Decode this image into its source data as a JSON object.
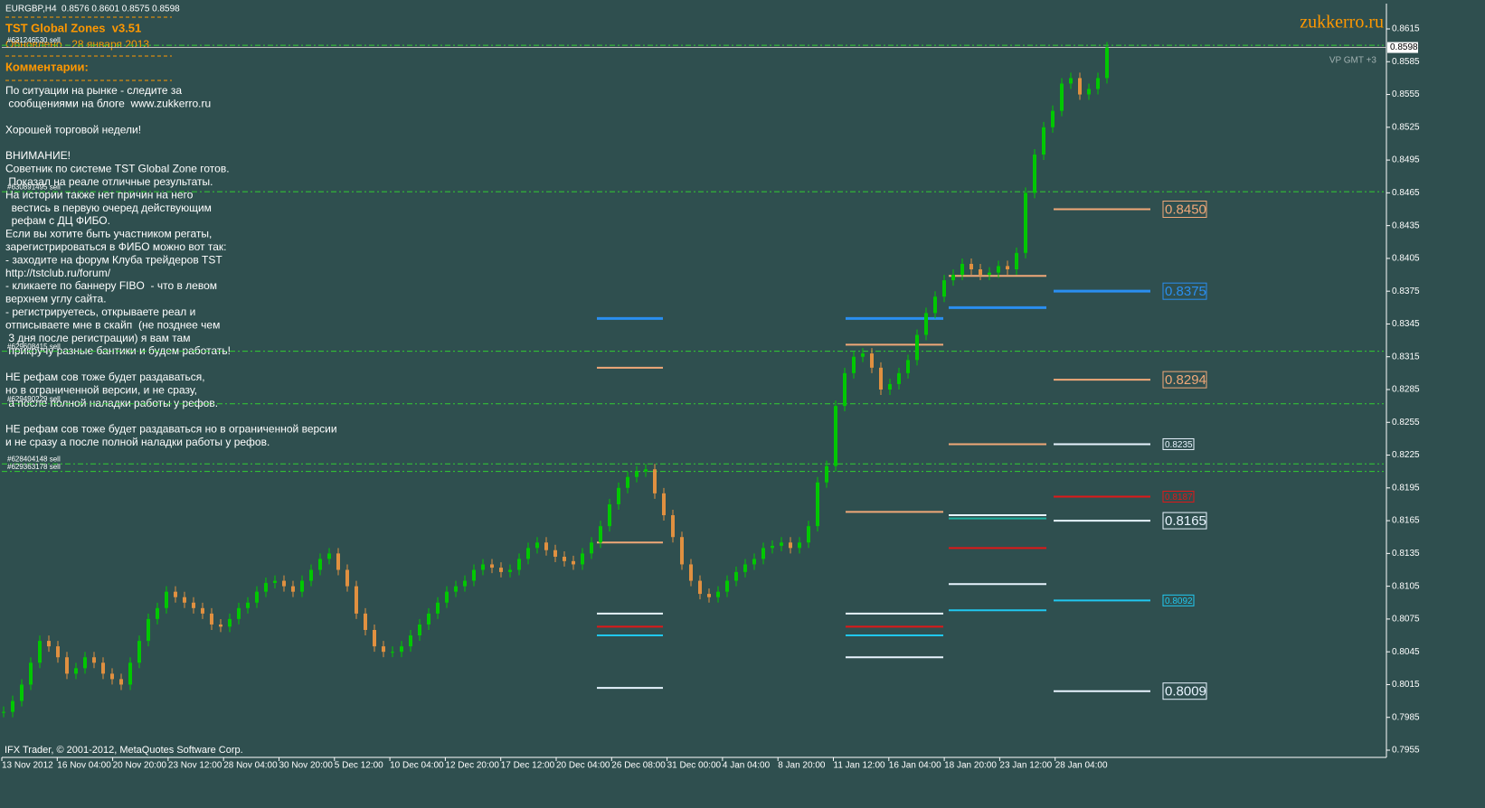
{
  "window": {
    "header": "EURGBP,H4  0.8576 0.8601 0.8575 0.8598",
    "indicator_title": "TST Global Zones  v3.51",
    "updated": "Обновлено - 28 января 2013",
    "comments_title": "Комментарии:",
    "comments": [
      [
        "По ситуации на рынке - следите за",
        " сообщениями на блоге  www.zukkerro.ru"
      ],
      [
        "Хорошей торговой недели!"
      ],
      [
        "ВНИМАНИЕ!",
        "Советник по системе TST Global Zone готов.",
        " Показал на реале отличные результаты.",
        "На истории также нет причин на него",
        "  вестись в первую очеред действующим",
        "  рефам с ДЦ ФИБО.",
        "Если вы хотите быть участником регаты,",
        "зарегистрироваться в ФИБО можно вот так:",
        "- заходите на форум Клуба трейдеров TST",
        "http://tstclub.ru/forum/",
        "- кликаете по баннеру FIBO  - что в левом",
        "верхнем углу сайта.",
        "- регистрируетесь, открываете реал и",
        "отписываете мне в скайп  (не позднее чем",
        " 3 дня после регистрации) я вам там",
        " прикручу разные бантики и будем работать!"
      ],
      [
        "НЕ рефам сов тоже будет раздаваться,",
        "но в ограниченной версии, и не сразу,",
        " а после полной наладки работы у рефов."
      ],
      [
        "НЕ рефам сов тоже будет раздаваться но в ограниченной версии",
        "и не сразу а после полной наладки работы у рефов."
      ]
    ],
    "watermark": "zukkerro.ru",
    "timezone": "VP GMT +3",
    "copyright": "IFX Trader, © 2001-2012, MetaQuotes Software Corp."
  },
  "chart_data": {
    "type": "candlestick",
    "up_color": "#00c800",
    "down_color": "#e09040",
    "values": [
      0.799,
      0.8,
      0.8015,
      0.8035,
      0.8055,
      0.805,
      0.804,
      0.8025,
      0.803,
      0.804,
      0.8035,
      0.8025,
      0.802,
      0.8015,
      0.8035,
      0.8055,
      0.8075,
      0.8085,
      0.81,
      0.8095,
      0.809,
      0.8085,
      0.808,
      0.807,
      0.8068,
      0.8075,
      0.8085,
      0.809,
      0.81,
      0.8108,
      0.811,
      0.8105,
      0.81,
      0.811,
      0.812,
      0.813,
      0.8135,
      0.812,
      0.8105,
      0.808,
      0.8065,
      0.805,
      0.8045,
      0.8045,
      0.805,
      0.806,
      0.807,
      0.808,
      0.809,
      0.81,
      0.8105,
      0.811,
      0.812,
      0.8125,
      0.8122,
      0.8118,
      0.812,
      0.813,
      0.814,
      0.8145,
      0.8138,
      0.8132,
      0.8128,
      0.8125,
      0.8135,
      0.8145,
      0.816,
      0.818,
      0.8195,
      0.8205,
      0.821,
      0.8212,
      0.819,
      0.817,
      0.815,
      0.8125,
      0.811,
      0.8098,
      0.8095,
      0.81,
      0.811,
      0.8118,
      0.8125,
      0.813,
      0.814,
      0.8142,
      0.8145,
      0.814,
      0.8145,
      0.816,
      0.82,
      0.8215,
      0.827,
      0.83,
      0.8315,
      0.8318,
      0.8305,
      0.8285,
      0.829,
      0.83,
      0.8312,
      0.8335,
      0.8355,
      0.837,
      0.8385,
      0.839,
      0.84,
      0.8395,
      0.839,
      0.8392,
      0.8398,
      0.8395,
      0.841,
      0.8465,
      0.85,
      0.8525,
      0.854,
      0.8565,
      0.857,
      0.8555,
      0.856,
      0.857,
      0.8598
    ],
    "x_labels": [
      "13 Nov 2012",
      "16 Nov 04:00",
      "20 Nov 20:00",
      "23 Nov 12:00",
      "28 Nov 04:00",
      "30 Nov 20:00",
      "5 Dec 12:00",
      "10 Dec 04:00",
      "12 Dec 20:00",
      "17 Dec 12:00",
      "20 Dec 04:00",
      "26 Dec 08:00",
      "31 Dec 00:00",
      "4 Jan 04:00",
      "8 Jan 20:00",
      "11 Jan 12:00",
      "16 Jan 04:00",
      "18 Jan 20:00",
      "23 Jan 12:00",
      "28 Jan 04:00"
    ],
    "ylim": [
      0.7955,
      0.8615
    ],
    "yticks": [
      0.8615,
      0.8585,
      0.8555,
      0.8525,
      0.8495,
      0.8465,
      0.8435,
      0.8405,
      0.8375,
      0.8345,
      0.8315,
      0.8285,
      0.8255,
      0.8225,
      0.8195,
      0.8165,
      0.8135,
      0.8105,
      0.8075,
      0.8045,
      0.8015,
      0.7985,
      0.7955
    ],
    "current_price": {
      "value": 0.8598,
      "label": "0.8598"
    },
    "orders": [
      {
        "value": 0.86,
        "label": "#631246530 sell"
      },
      {
        "value": 0.8466,
        "label": "#630891495 sell"
      },
      {
        "value": 0.832,
        "label": "#629608415 sell"
      },
      {
        "value": 0.8272,
        "label": "#629490229 sell"
      },
      {
        "value": 0.8217,
        "label": "#628404148 sell"
      },
      {
        "value": 0.821,
        "label": "#629363178 sell"
      }
    ],
    "zones": [
      [
        {
          "value": 0.835,
          "color": "#2a8ef0"
        },
        {
          "value": 0.8305,
          "color": "#f0a878"
        },
        {
          "value": 0.8145,
          "color": "#f0a878"
        },
        {
          "value": 0.808,
          "color": "#e8f4ff"
        },
        {
          "value": 0.8068,
          "color": "#e01818"
        },
        {
          "value": 0.806,
          "color": "#20c8f0"
        },
        {
          "value": 0.8012,
          "color": "#e8f4ff"
        }
      ],
      [
        {
          "value": 0.835,
          "color": "#2a8ef0"
        },
        {
          "value": 0.8326,
          "color": "#f0a878"
        },
        {
          "value": 0.8173,
          "color": "#f0a878"
        },
        {
          "value": 0.808,
          "color": "#e8f4ff"
        },
        {
          "value": 0.8068,
          "color": "#e01818"
        },
        {
          "value": 0.806,
          "color": "#20c8f0"
        },
        {
          "value": 0.804,
          "color": "#e8f4ff"
        }
      ],
      [
        {
          "value": 0.8389,
          "color": "#f0a878"
        },
        {
          "value": 0.836,
          "color": "#2a8ef0"
        },
        {
          "value": 0.8235,
          "color": "#f0a878"
        },
        {
          "value": 0.817,
          "color": "#e8f4ff"
        },
        {
          "value": 0.8167,
          "color": "#20b0a0"
        },
        {
          "value": 0.814,
          "color": "#e01818"
        },
        {
          "value": 0.8107,
          "color": "#e8f4ff"
        },
        {
          "value": 0.8083,
          "color": "#20c8f0"
        }
      ],
      [
        {
          "value": 0.845,
          "label": "0.8450",
          "color": "#f0a878",
          "big": true
        },
        {
          "value": 0.8375,
          "label": "0.8375",
          "color": "#2a8ef0",
          "big": true
        },
        {
          "value": 0.8294,
          "label": "0.8294",
          "color": "#f0a878",
          "big": true
        },
        {
          "value": 0.8235,
          "label": "0.8235",
          "color": "#e8f4ff",
          "big": false
        },
        {
          "value": 0.8187,
          "label": "0.8187",
          "color": "#e01818",
          "big": false
        },
        {
          "value": 0.8165,
          "label": "0.8165",
          "color": "#e8f4ff",
          "big": true
        },
        {
          "value": 0.8092,
          "label": "0.8092",
          "color": "#20c8f0",
          "big": false
        },
        {
          "value": 0.8009,
          "label": "0.8009",
          "color": "#e8f4ff",
          "big": true
        }
      ]
    ]
  }
}
